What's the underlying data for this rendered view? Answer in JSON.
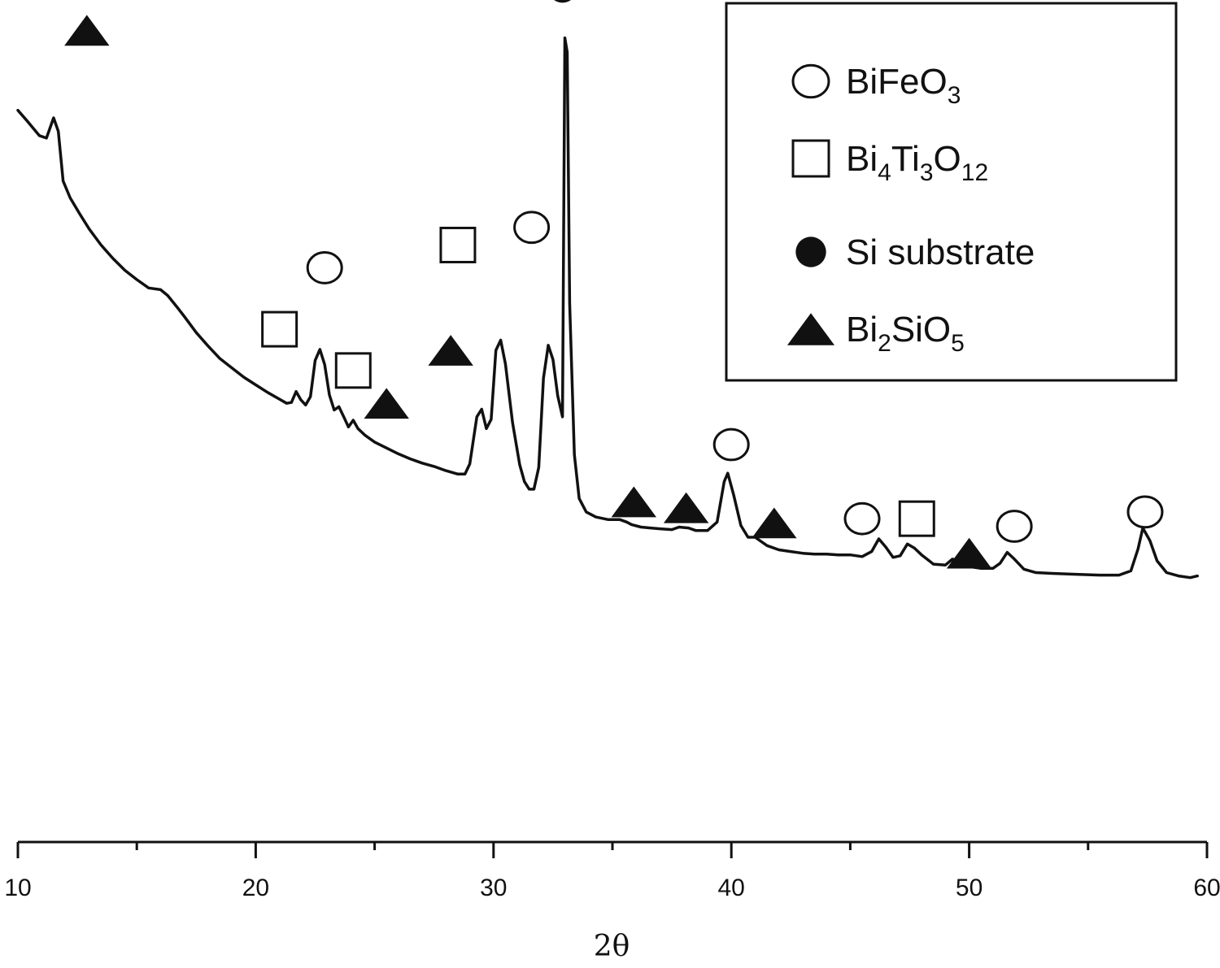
{
  "chart_data": {
    "type": "line",
    "title": "",
    "xlabel": "2θ",
    "ylabel": "",
    "xlim": [
      10,
      60
    ],
    "xticks": [
      10,
      20,
      30,
      40,
      50,
      60
    ],
    "x_minor_step": 5,
    "y_axis_visible": false,
    "ylim": [
      0,
      1000
    ],
    "series": [
      {
        "color": "#111111",
        "points": [
          [
            10.0,
            869
          ],
          [
            10.4,
            856
          ],
          [
            10.9,
            839
          ],
          [
            11.2,
            836
          ],
          [
            11.5,
            860
          ],
          [
            11.7,
            844
          ],
          [
            11.9,
            785
          ],
          [
            12.2,
            765
          ],
          [
            12.6,
            746
          ],
          [
            13.0,
            728
          ],
          [
            13.5,
            709
          ],
          [
            14.0,
            693
          ],
          [
            14.5,
            679
          ],
          [
            15.0,
            668
          ],
          [
            15.5,
            658
          ],
          [
            16.0,
            656
          ],
          [
            16.3,
            649
          ],
          [
            16.7,
            635
          ],
          [
            17.0,
            624
          ],
          [
            17.5,
            605
          ],
          [
            18.0,
            589
          ],
          [
            18.5,
            574
          ],
          [
            19.0,
            563
          ],
          [
            19.5,
            552
          ],
          [
            20.0,
            543
          ],
          [
            20.5,
            534
          ],
          [
            21.0,
            526
          ],
          [
            21.3,
            521
          ],
          [
            21.5,
            522
          ],
          [
            21.7,
            535
          ],
          [
            21.9,
            525
          ],
          [
            22.1,
            519
          ],
          [
            22.3,
            529
          ],
          [
            22.5,
            572
          ],
          [
            22.7,
            585
          ],
          [
            22.9,
            567
          ],
          [
            23.1,
            531
          ],
          [
            23.3,
            513
          ],
          [
            23.5,
            517
          ],
          [
            23.7,
            505
          ],
          [
            23.9,
            493
          ],
          [
            24.1,
            501
          ],
          [
            24.3,
            491
          ],
          [
            24.6,
            483
          ],
          [
            25.0,
            475
          ],
          [
            25.5,
            468
          ],
          [
            26.0,
            461
          ],
          [
            26.5,
            455
          ],
          [
            27.0,
            450
          ],
          [
            27.5,
            446
          ],
          [
            28.0,
            441
          ],
          [
            28.5,
            437
          ],
          [
            28.8,
            437
          ],
          [
            29.0,
            449
          ],
          [
            29.3,
            505
          ],
          [
            29.5,
            514
          ],
          [
            29.7,
            491
          ],
          [
            29.9,
            502
          ],
          [
            30.1,
            584
          ],
          [
            30.3,
            596
          ],
          [
            30.5,
            568
          ],
          [
            30.8,
            498
          ],
          [
            31.1,
            448
          ],
          [
            31.3,
            428
          ],
          [
            31.5,
            419
          ],
          [
            31.7,
            419
          ],
          [
            31.9,
            445
          ],
          [
            32.1,
            551
          ],
          [
            32.3,
            590
          ],
          [
            32.5,
            573
          ],
          [
            32.7,
            530
          ],
          [
            32.9,
            505
          ],
          [
            33.0,
            955
          ],
          [
            33.1,
            938
          ],
          [
            33.2,
            640
          ],
          [
            33.4,
            460
          ],
          [
            33.6,
            408
          ],
          [
            33.9,
            392
          ],
          [
            34.3,
            386
          ],
          [
            34.8,
            383
          ],
          [
            35.3,
            383
          ],
          [
            35.6,
            380
          ],
          [
            35.8,
            377
          ],
          [
            36.2,
            374
          ],
          [
            36.6,
            373
          ],
          [
            37.0,
            372
          ],
          [
            37.5,
            371
          ],
          [
            37.8,
            374
          ],
          [
            38.2,
            373
          ],
          [
            38.5,
            370
          ],
          [
            39.0,
            370
          ],
          [
            39.4,
            380
          ],
          [
            39.7,
            428
          ],
          [
            39.85,
            438
          ],
          [
            40.1,
            412
          ],
          [
            40.4,
            376
          ],
          [
            40.7,
            362
          ],
          [
            41.0,
            362
          ],
          [
            41.5,
            352
          ],
          [
            42.0,
            347
          ],
          [
            42.5,
            345
          ],
          [
            43.0,
            343
          ],
          [
            43.5,
            342
          ],
          [
            44.0,
            342
          ],
          [
            44.5,
            341
          ],
          [
            45.0,
            341
          ],
          [
            45.5,
            339
          ],
          [
            45.9,
            345
          ],
          [
            46.2,
            360
          ],
          [
            46.5,
            350
          ],
          [
            46.8,
            338
          ],
          [
            47.1,
            340
          ],
          [
            47.4,
            354
          ],
          [
            47.7,
            349
          ],
          [
            48.0,
            341
          ],
          [
            48.5,
            330
          ],
          [
            49.0,
            329
          ],
          [
            49.3,
            336
          ],
          [
            49.7,
            333
          ],
          [
            50.0,
            327
          ],
          [
            50.5,
            325
          ],
          [
            51.0,
            325
          ],
          [
            51.3,
            331
          ],
          [
            51.6,
            344
          ],
          [
            51.9,
            336
          ],
          [
            52.3,
            324
          ],
          [
            52.8,
            320
          ],
          [
            53.5,
            319
          ],
          [
            54.5,
            318
          ],
          [
            55.5,
            317
          ],
          [
            56.3,
            317
          ],
          [
            56.8,
            322
          ],
          [
            57.1,
            348
          ],
          [
            57.3,
            373
          ],
          [
            57.6,
            358
          ],
          [
            57.9,
            334
          ],
          [
            58.3,
            320
          ],
          [
            58.8,
            316
          ],
          [
            59.3,
            314
          ],
          [
            59.6,
            316
          ]
        ]
      }
    ],
    "peak_markers": [
      {
        "phase": "Bi2SiO5",
        "x": 12.9,
        "y": 964
      },
      {
        "phase": "Bi4Ti3O12",
        "x": 21.0,
        "y": 609
      },
      {
        "phase": "BiFeO3",
        "x": 22.9,
        "y": 682
      },
      {
        "phase": "Bi4Ti3O12",
        "x": 24.1,
        "y": 560
      },
      {
        "phase": "Bi2SiO5",
        "x": 25.5,
        "y": 521
      },
      {
        "phase": "Bi2SiO5",
        "x": 28.2,
        "y": 584
      },
      {
        "phase": "Bi4Ti3O12",
        "x": 28.5,
        "y": 709
      },
      {
        "phase": "BiFeO3",
        "x": 31.6,
        "y": 730
      },
      {
        "phase": "Si substrate",
        "x": 32.9,
        "y": 1014
      },
      {
        "phase": "Bi2SiO5",
        "x": 35.9,
        "y": 404
      },
      {
        "phase": "Bi2SiO5",
        "x": 38.1,
        "y": 397
      },
      {
        "phase": "BiFeO3",
        "x": 40.0,
        "y": 472
      },
      {
        "phase": "Bi2SiO5",
        "x": 41.8,
        "y": 379
      },
      {
        "phase": "BiFeO3",
        "x": 45.5,
        "y": 384
      },
      {
        "phase": "Bi4Ti3O12",
        "x": 47.8,
        "y": 384
      },
      {
        "phase": "Bi2SiO5",
        "x": 50.0,
        "y": 343
      },
      {
        "phase": "BiFeO3",
        "x": 51.9,
        "y": 375
      },
      {
        "phase": "BiFeO3",
        "x": 57.4,
        "y": 392
      }
    ],
    "legend": {
      "placement": "top-right",
      "entries": [
        {
          "phase": "BiFeO3",
          "marker": "open-circle",
          "parts": [
            {
              "t": "BiFeO"
            },
            {
              "t": "3",
              "sub": true
            }
          ]
        },
        {
          "phase": "Bi4Ti3O12",
          "marker": "open-square",
          "parts": [
            {
              "t": "Bi"
            },
            {
              "t": "4",
              "sub": true
            },
            {
              "t": "Ti"
            },
            {
              "t": "3",
              "sub": true
            },
            {
              "t": "O"
            },
            {
              "t": "12",
              "sub": true
            }
          ]
        },
        {
          "phase": "Si substrate",
          "marker": "filled-circle",
          "parts": [
            {
              "t": "Si substrate"
            }
          ]
        },
        {
          "phase": "Bi2SiO5",
          "marker": "filled-triangle",
          "parts": [
            {
              "t": "Bi"
            },
            {
              "t": "2",
              "sub": true
            },
            {
              "t": "SiO"
            },
            {
              "t": "5",
              "sub": true
            }
          ]
        }
      ]
    }
  }
}
